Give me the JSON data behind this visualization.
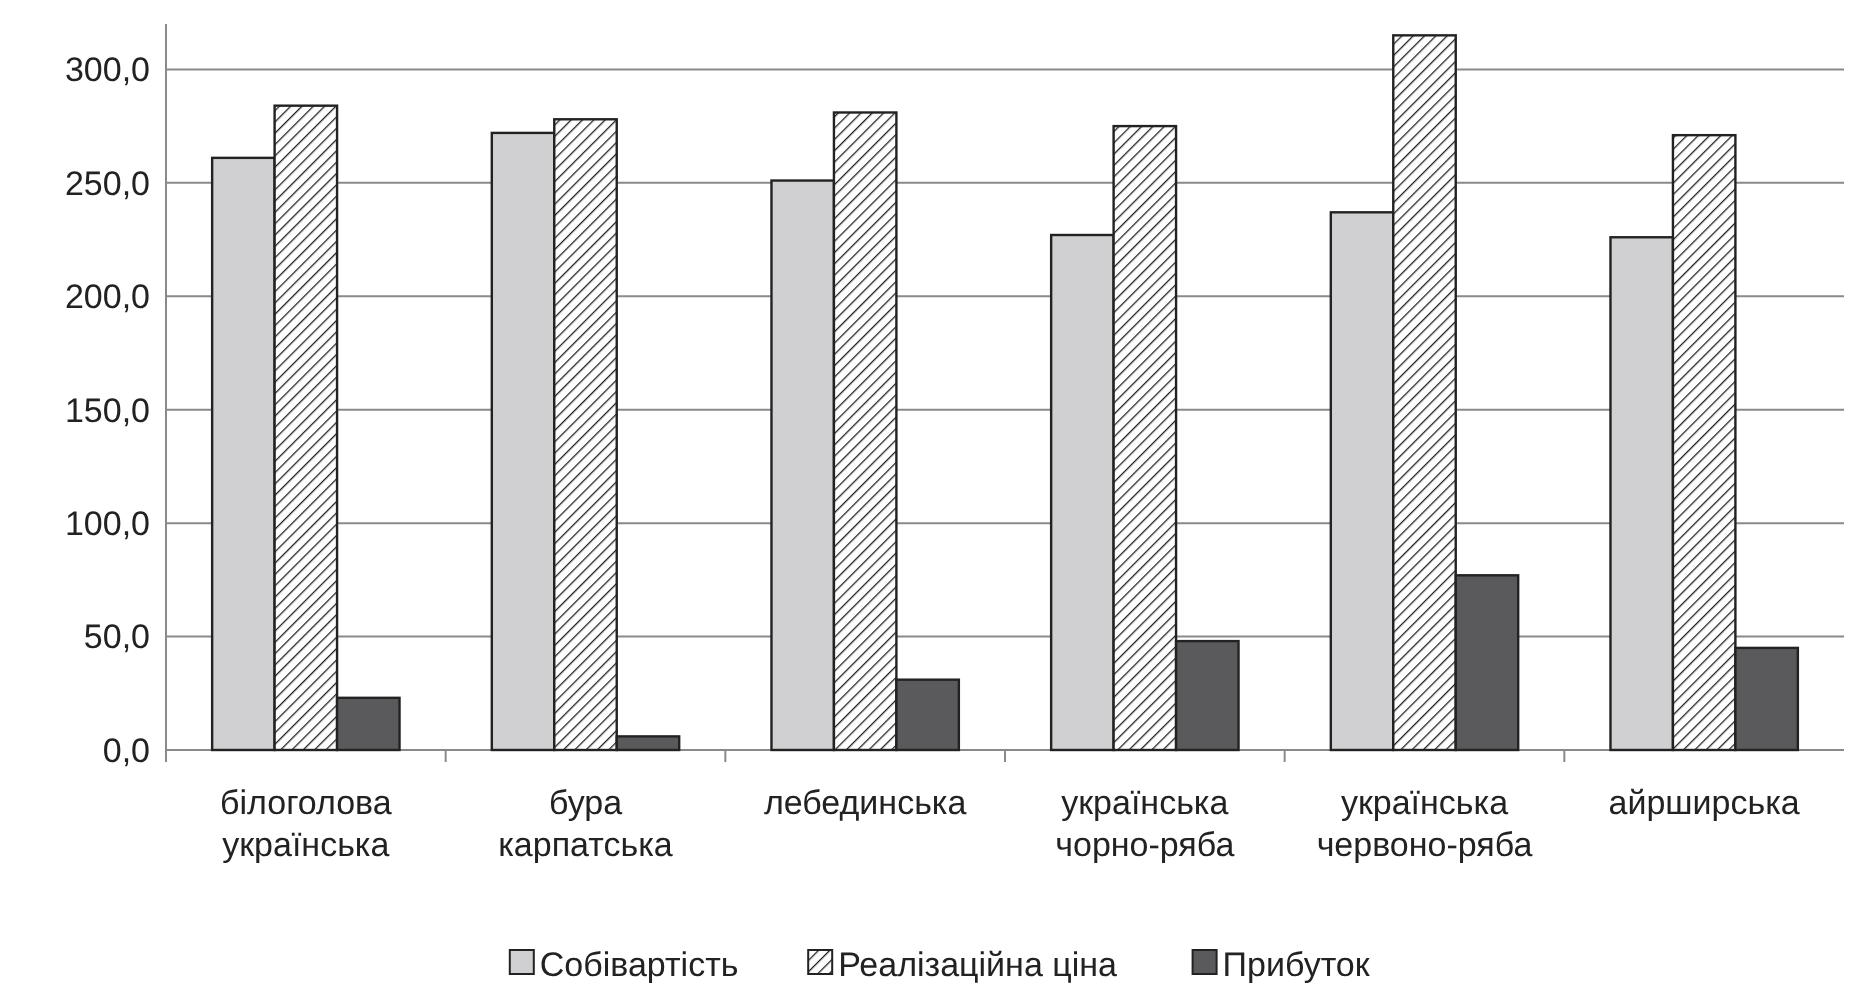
{
  "chart_data": {
    "type": "bar",
    "categories": [
      "білоголова українська",
      "бура карпатська",
      "лебединська",
      "українська чорно-ряба",
      "українська червоно-ряба",
      "айрширська"
    ],
    "series": [
      {
        "name": "Собівартість",
        "color": "#d0d0d2",
        "values": [
          261,
          272,
          251,
          227,
          237,
          226
        ]
      },
      {
        "name": "Реалізаційна ціна",
        "color": "#222222",
        "values": [
          284,
          278,
          281,
          275,
          315,
          271
        ]
      },
      {
        "name": "Прибуток",
        "color": "#5a5a5c",
        "values": [
          23,
          6,
          31,
          48,
          77,
          45
        ]
      }
    ],
    "ylim": [
      0,
      320
    ],
    "yticks": [
      {
        "value": 0,
        "label": "0,0"
      },
      {
        "value": 50,
        "label": "50,0"
      },
      {
        "value": 100,
        "label": "100,0"
      },
      {
        "value": 150,
        "label": "150,0"
      },
      {
        "value": 200,
        "label": "200,0"
      },
      {
        "value": 250,
        "label": "250,0"
      },
      {
        "value": 300,
        "label": "300,0"
      }
    ],
    "grid": "y",
    "legend": "bottom"
  }
}
